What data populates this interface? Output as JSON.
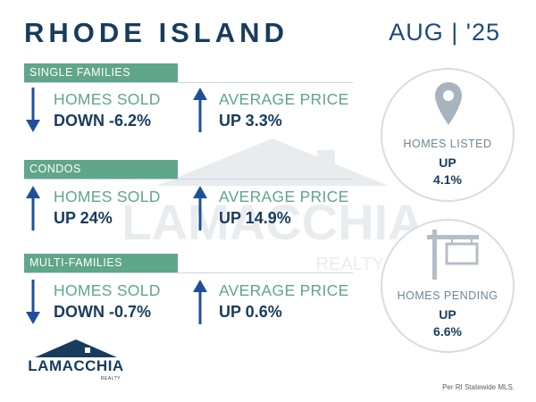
{
  "header": {
    "title": "RHODE ISLAND",
    "period": "AUG | '25"
  },
  "sections": [
    {
      "name": "SINGLE FAMILIES",
      "homes_sold": {
        "label": "HOMES SOLD",
        "value": "DOWN -6.2%",
        "direction": "down"
      },
      "average_price": {
        "label": "AVERAGE PRICE",
        "value": "UP 3.3%",
        "direction": "up"
      }
    },
    {
      "name": "CONDOS",
      "homes_sold": {
        "label": "HOMES SOLD",
        "value": "UP 24%",
        "direction": "up"
      },
      "average_price": {
        "label": "AVERAGE PRICE",
        "value": "UP 14.9%",
        "direction": "up"
      }
    },
    {
      "name": "MULTI-FAMILIES",
      "homes_sold": {
        "label": "HOMES SOLD",
        "value": "DOWN -0.7%",
        "direction": "down"
      },
      "average_price": {
        "label": "AVERAGE PRICE",
        "value": "UP 0.6%",
        "direction": "up"
      }
    }
  ],
  "side_stats": {
    "listed": {
      "label": "HOMES LISTED",
      "direction": "UP",
      "value": "4.1%",
      "icon": "map-pin-icon"
    },
    "pending": {
      "label": "HOMES PENDING",
      "direction": "UP",
      "value": "6.6%",
      "icon": "sign-post-icon"
    }
  },
  "logo": {
    "name": "LAMACCHIA",
    "sub": "REALTY"
  },
  "watermark": {
    "name": "LAMACCHIA",
    "sub": "REALTY"
  },
  "footer": {
    "source": "Per RI Statewide MLS."
  },
  "colors": {
    "navy": "#173c5e",
    "green": "#5fa68a",
    "arrow_blue": "#1f4f9c",
    "muted": "#6f8594"
  }
}
